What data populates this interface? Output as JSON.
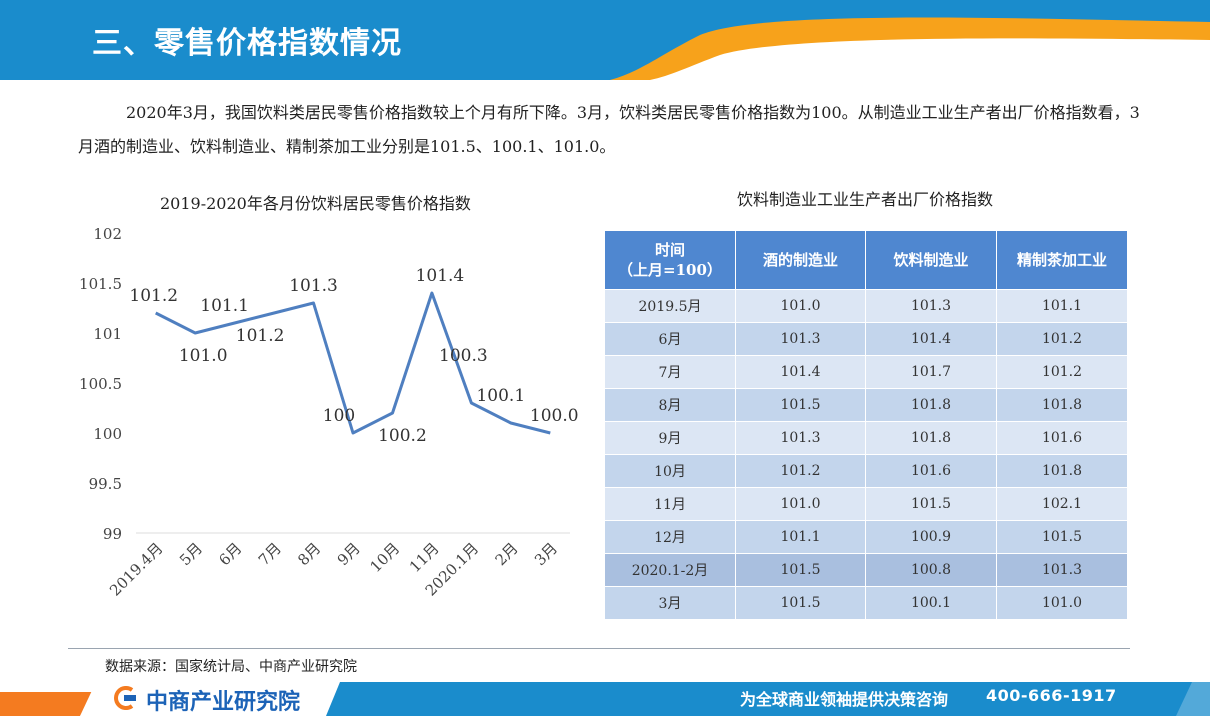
{
  "header": {
    "title": "三、零售价格指数情况",
    "colors": {
      "bar": "#1a8ccc",
      "accent": "#f7a21b"
    }
  },
  "intro": "2020年3月，我国饮料类居民零售价格指数较上个月有所下降。3月，饮料类居民零售价格指数为100。从制造业工业生产者出厂价格指数看，3月酒的制造业、饮料制造业、精制茶加工业分别是101.5、100.1、101.0。",
  "chart_data": {
    "type": "line",
    "title": "2019-2020年各月份饮料居民零售价格指数",
    "categories": [
      "2019.4月",
      "5月",
      "6月",
      "7月",
      "8月",
      "9月",
      "10月",
      "11月",
      "2020.1月",
      "2月",
      "3月"
    ],
    "values": [
      101.2,
      101.0,
      101.1,
      101.2,
      101.3,
      100.0,
      100.2,
      101.4,
      100.3,
      100.1,
      100.0
    ],
    "data_labels": [
      "101.2",
      "101.0",
      "101.1",
      "101.2",
      "101.3",
      "100",
      "100.2",
      "101.4",
      "100.3",
      "100.1",
      "100.0"
    ],
    "y_ticks": [
      "102",
      "101.5",
      "101",
      "100.5",
      "100",
      "99.5",
      "99"
    ],
    "ylim": [
      99,
      102
    ],
    "grid": false,
    "line_color": "#4f7fc0"
  },
  "table": {
    "title": "饮料制造业工业生产者出厂价格指数",
    "headers": [
      "时间\n（上月=100）",
      "酒的制造业",
      "饮料制造业",
      "精制茶加工业"
    ],
    "rows": [
      [
        "2019.5月",
        "101.0",
        "101.3",
        "101.1"
      ],
      [
        "6月",
        "101.3",
        "101.4",
        "101.2"
      ],
      [
        "7月",
        "101.4",
        "101.7",
        "101.2"
      ],
      [
        "8月",
        "101.5",
        "101.8",
        "101.8"
      ],
      [
        "9月",
        "101.3",
        "101.8",
        "101.6"
      ],
      [
        "10月",
        "101.2",
        "101.6",
        "101.8"
      ],
      [
        "11月",
        "101.0",
        "101.5",
        "102.1"
      ],
      [
        "12月",
        "101.1",
        "100.9",
        "101.5"
      ],
      [
        "2020.1-2月",
        "101.5",
        "100.8",
        "101.3"
      ],
      [
        "3月",
        "101.5",
        "100.1",
        "101.0"
      ]
    ]
  },
  "source": "数据来源：国家统计局、中商产业研究院",
  "footer": {
    "logo": "中商产业研究院",
    "slogan": "为全球商业领袖提供决策咨询",
    "phone": "400-666-1917"
  }
}
